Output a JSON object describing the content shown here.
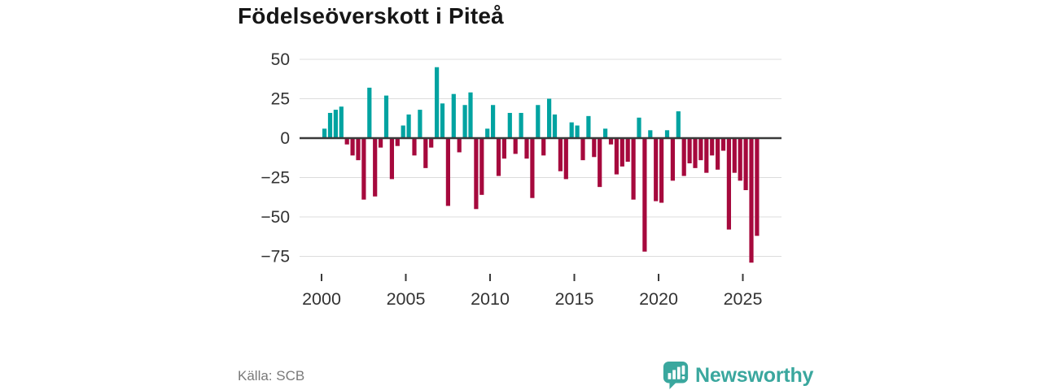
{
  "title": "Födelseöverskott i Piteå",
  "footer": {
    "source": "Källa: SCB",
    "brand": "Newsworthy"
  },
  "colors": {
    "positive_bar": "#00a3a1",
    "negative_bar": "#a6093d",
    "gridline": "#dcdcdc",
    "zero_axis": "#3a3a3a",
    "tick_label": "#333333",
    "title_text": "#161616",
    "source_text": "#797979",
    "brand_teal": "#3aa79e",
    "background": "#ffffff"
  },
  "chart_data": {
    "type": "bar",
    "title": "Födelseöverskott i Piteå",
    "xlabel": "",
    "ylabel": "",
    "grid": true,
    "legend_position": "none",
    "ylim": [
      -85,
      55
    ],
    "y_ticks": [
      {
        "value": 50,
        "label": "50"
      },
      {
        "value": 25,
        "label": "25"
      },
      {
        "value": 0,
        "label": "0"
      },
      {
        "value": -25,
        "label": "−25"
      },
      {
        "value": -50,
        "label": "−50"
      },
      {
        "value": -75,
        "label": "−75"
      }
    ],
    "x_ticks": [
      {
        "year": 2000,
        "label": "2000"
      },
      {
        "year": 2005,
        "label": "2005"
      },
      {
        "year": 2010,
        "label": "2010"
      },
      {
        "year": 2015,
        "label": "2015"
      },
      {
        "year": 2020,
        "label": "2020"
      },
      {
        "year": 2025,
        "label": "2025"
      }
    ],
    "x_structure": {
      "start_year": 2000,
      "periods_per_year": 3,
      "end_year": 2025
    },
    "series": [
      {
        "name": "Födelseöverskott",
        "values": [
          6,
          16,
          18,
          20,
          -4,
          -11,
          -14,
          -39,
          32,
          -37,
          -6,
          27,
          -26,
          -5,
          8,
          15,
          -11,
          18,
          -19,
          -6,
          45,
          22,
          -43,
          28,
          -9,
          21,
          29,
          -45,
          -36,
          6,
          21,
          -24,
          -13,
          16,
          -10,
          16,
          -13,
          -38,
          21,
          -11,
          25,
          15,
          -21,
          -26,
          10,
          8,
          -14,
          14,
          -12,
          -31,
          6,
          -4,
          -23,
          -18,
          -15,
          -39,
          13,
          -72,
          5,
          -40,
          -41,
          5,
          -27,
          17,
          -24,
          -16,
          -19,
          -14,
          -22,
          -11,
          -20,
          -8,
          -58,
          -22,
          -27,
          -33,
          -79,
          -62
        ]
      }
    ]
  }
}
